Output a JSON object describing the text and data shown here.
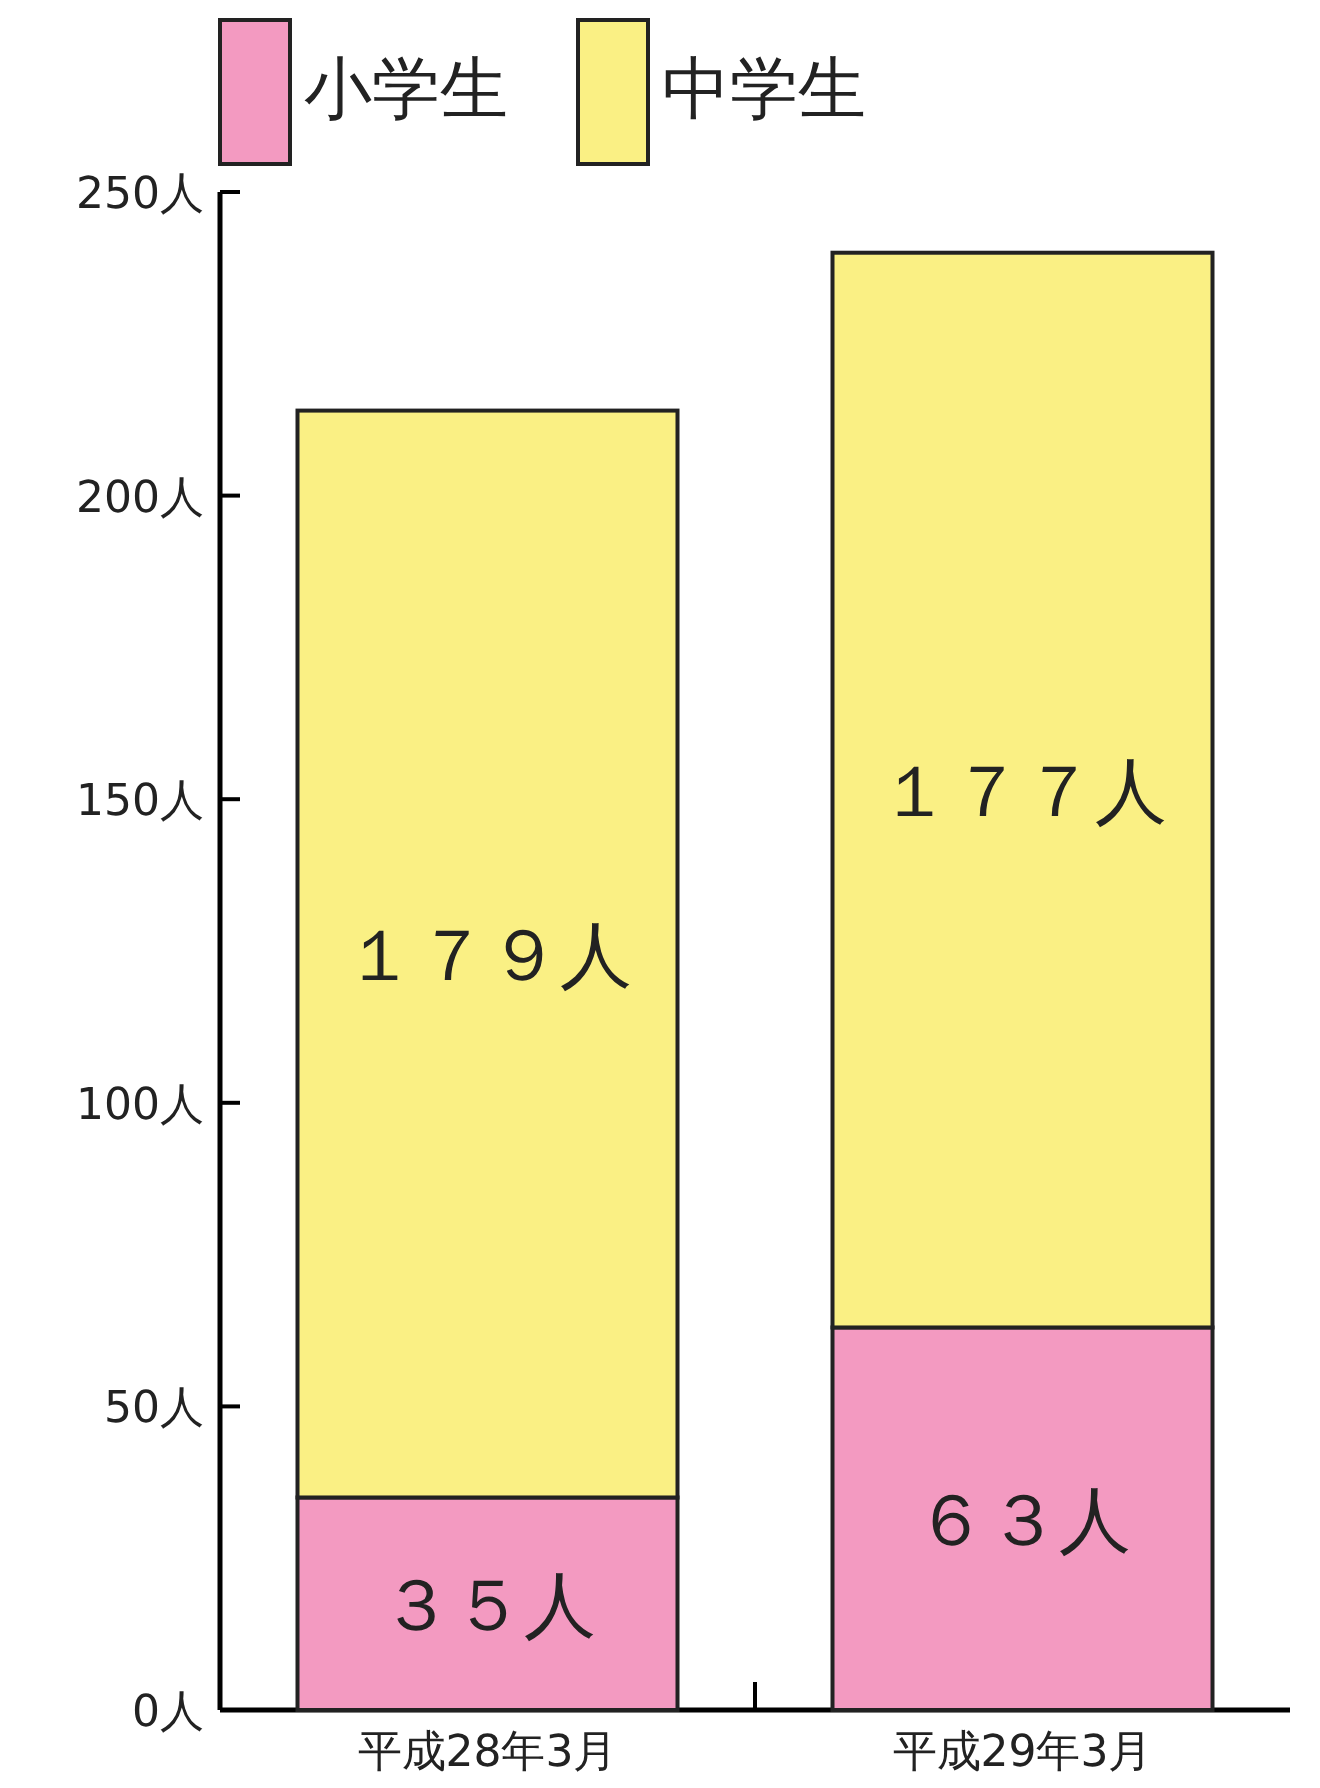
{
  "chart_data": {
    "type": "bar",
    "stacked": true,
    "legend": "top",
    "categories": [
      "平成28年3月",
      "平成29年3月"
    ],
    "ylim": [
      0,
      250
    ],
    "yticks": [
      {
        "value": 0,
        "label": "0人"
      },
      {
        "value": 50,
        "label": "50人"
      },
      {
        "value": 100,
        "label": "100人"
      },
      {
        "value": 150,
        "label": "150人"
      },
      {
        "value": 200,
        "label": "200人"
      },
      {
        "value": 250,
        "label": "250人"
      }
    ],
    "series": [
      {
        "name": "小学生",
        "color": "#f39ac1",
        "values": [
          35,
          63
        ],
        "value_labels": [
          "３５人",
          "６３人"
        ]
      },
      {
        "name": "中学生",
        "color": "#faf084",
        "values": [
          179,
          177
        ],
        "value_labels": [
          "１７９人",
          "１７７人"
        ]
      }
    ]
  }
}
